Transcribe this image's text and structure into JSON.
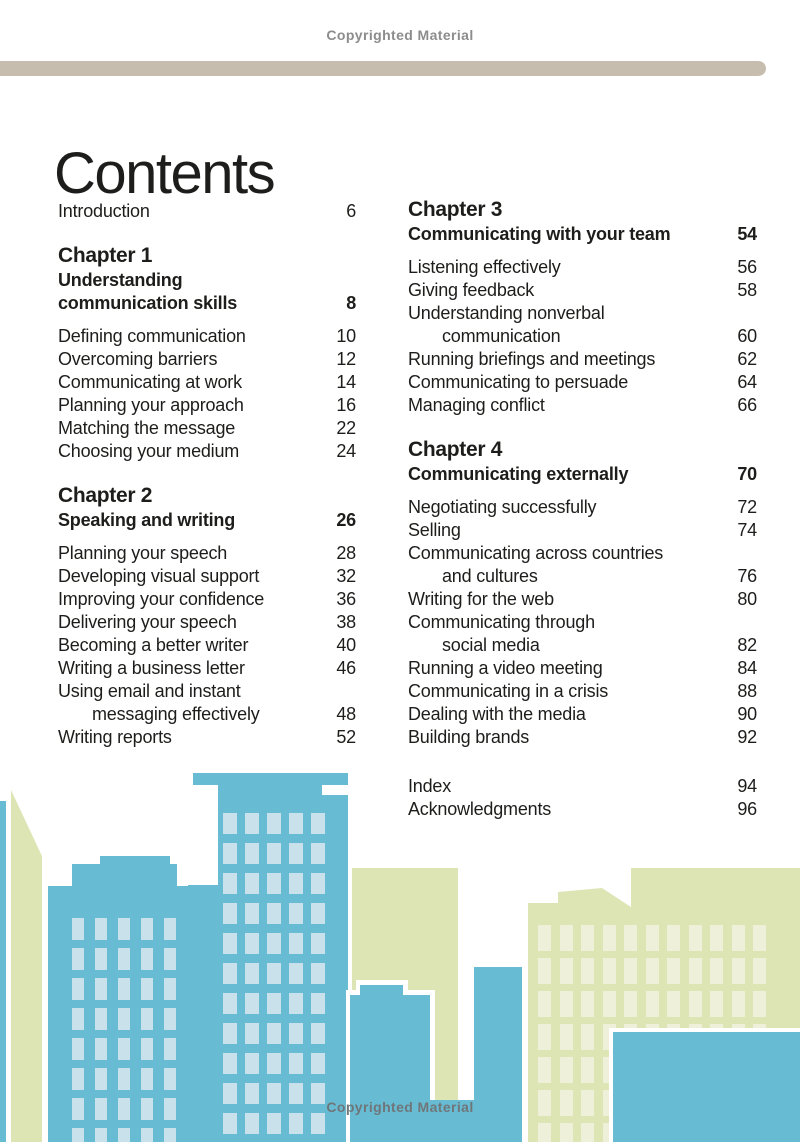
{
  "page": {
    "copyright_top": "Copyrighted Material",
    "copyright_bottom": "Copyrighted Material",
    "title": "Contents"
  },
  "colors": {
    "building_blue": "#67bcd4",
    "window_blue": "#c9e1ea",
    "building_green": "#dde5b5",
    "window_green": "#eef0da",
    "divider_tan": "#c7bdae",
    "copyright_gray_top": "#8c8c8c",
    "copyright_gray_bottom": "#6f767a",
    "text_black": "#1d1d1b"
  },
  "toc": {
    "columns": [
      {
        "id": "left",
        "blocks": [
          {
            "type": "entries",
            "items": [
              {
                "lines": [
                  "Introduction"
                ],
                "page": "6"
              }
            ]
          },
          {
            "type": "chapter",
            "title": "Chapter 1",
            "subtitle_lines": [
              "Understanding",
              "communication skills"
            ],
            "page": "8"
          },
          {
            "type": "entries",
            "items": [
              {
                "lines": [
                  "Defining communication"
                ],
                "page": "10"
              },
              {
                "lines": [
                  "Overcoming barriers"
                ],
                "page": "12"
              },
              {
                "lines": [
                  "Communicating at work"
                ],
                "page": "14"
              },
              {
                "lines": [
                  "Planning your approach"
                ],
                "page": "16"
              },
              {
                "lines": [
                  "Matching the message"
                ],
                "page": "22"
              },
              {
                "lines": [
                  "Choosing your medium"
                ],
                "page": "24"
              }
            ]
          },
          {
            "type": "chapter",
            "title": "Chapter 2",
            "subtitle_lines": [
              "Speaking and writing"
            ],
            "page": "26"
          },
          {
            "type": "entries",
            "items": [
              {
                "lines": [
                  "Planning your speech"
                ],
                "page": "28"
              },
              {
                "lines": [
                  "Developing visual support"
                ],
                "page": "32"
              },
              {
                "lines": [
                  "Improving your confidence"
                ],
                "page": "36"
              },
              {
                "lines": [
                  "Delivering your speech"
                ],
                "page": "38"
              },
              {
                "lines": [
                  "Becoming a better writer"
                ],
                "page": "40"
              },
              {
                "lines": [
                  "Writing a business letter"
                ],
                "page": "46"
              },
              {
                "lines": [
                  "Using email and instant",
                  "messaging effectively"
                ],
                "page": "48"
              },
              {
                "lines": [
                  "Writing reports"
                ],
                "page": "52"
              }
            ]
          }
        ]
      },
      {
        "id": "right",
        "blocks": [
          {
            "type": "chapter",
            "title": "Chapter 3",
            "subtitle_lines": [
              "Communicating with your team"
            ],
            "page": "54"
          },
          {
            "type": "entries",
            "items": [
              {
                "lines": [
                  "Listening effectively"
                ],
                "page": "56"
              },
              {
                "lines": [
                  "Giving feedback"
                ],
                "page": "58"
              },
              {
                "lines": [
                  "Understanding nonverbal",
                  "communication"
                ],
                "page": "60"
              },
              {
                "lines": [
                  "Running briefings and meetings"
                ],
                "page": "62"
              },
              {
                "lines": [
                  "Communicating to persuade"
                ],
                "page": "64"
              },
              {
                "lines": [
                  "Managing conflict"
                ],
                "page": "66"
              }
            ]
          },
          {
            "type": "chapter",
            "title": "Chapter 4",
            "subtitle_lines": [
              "Communicating externally"
            ],
            "page": "70"
          },
          {
            "type": "entries",
            "items": [
              {
                "lines": [
                  "Negotiating successfully"
                ],
                "page": "72"
              },
              {
                "lines": [
                  "Selling"
                ],
                "page": "74"
              },
              {
                "lines": [
                  "Communicating across countries",
                  "and cultures"
                ],
                "page": "76"
              },
              {
                "lines": [
                  "Writing for the web"
                ],
                "page": "80"
              },
              {
                "lines": [
                  "Communicating through",
                  "social media"
                ],
                "page": "82"
              },
              {
                "lines": [
                  "Running a video meeting"
                ],
                "page": "84"
              },
              {
                "lines": [
                  "Communicating in a crisis"
                ],
                "page": "88"
              },
              {
                "lines": [
                  "Dealing with the media"
                ],
                "page": "90"
              },
              {
                "lines": [
                  "Building brands"
                ],
                "page": "92"
              }
            ]
          },
          {
            "type": "entries",
            "gap": "large",
            "items": [
              {
                "lines": [
                  "Index"
                ],
                "page": "94"
              },
              {
                "lines": [
                  "Acknowledgments"
                ],
                "page": "96"
              }
            ]
          }
        ]
      }
    ]
  }
}
